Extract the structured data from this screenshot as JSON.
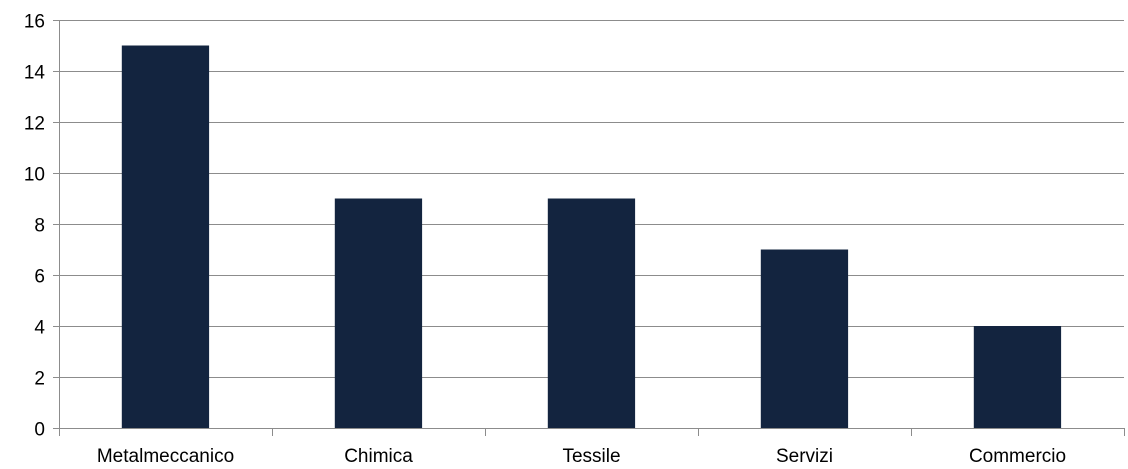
{
  "chart_data": {
    "type": "bar",
    "title": "",
    "xlabel": "",
    "ylabel": "",
    "categories": [
      "Metalmeccanico",
      "Chimica",
      "Tessile",
      "Servizi",
      "Commercio"
    ],
    "values": [
      15,
      9,
      9,
      7,
      4
    ],
    "ylim": [
      0,
      16
    ],
    "yticks": [
      "0",
      "2",
      "4",
      "6",
      "8",
      "10",
      "12",
      "14",
      "16"
    ],
    "grid": true,
    "legend": "none",
    "bar_color": "#13243f"
  }
}
